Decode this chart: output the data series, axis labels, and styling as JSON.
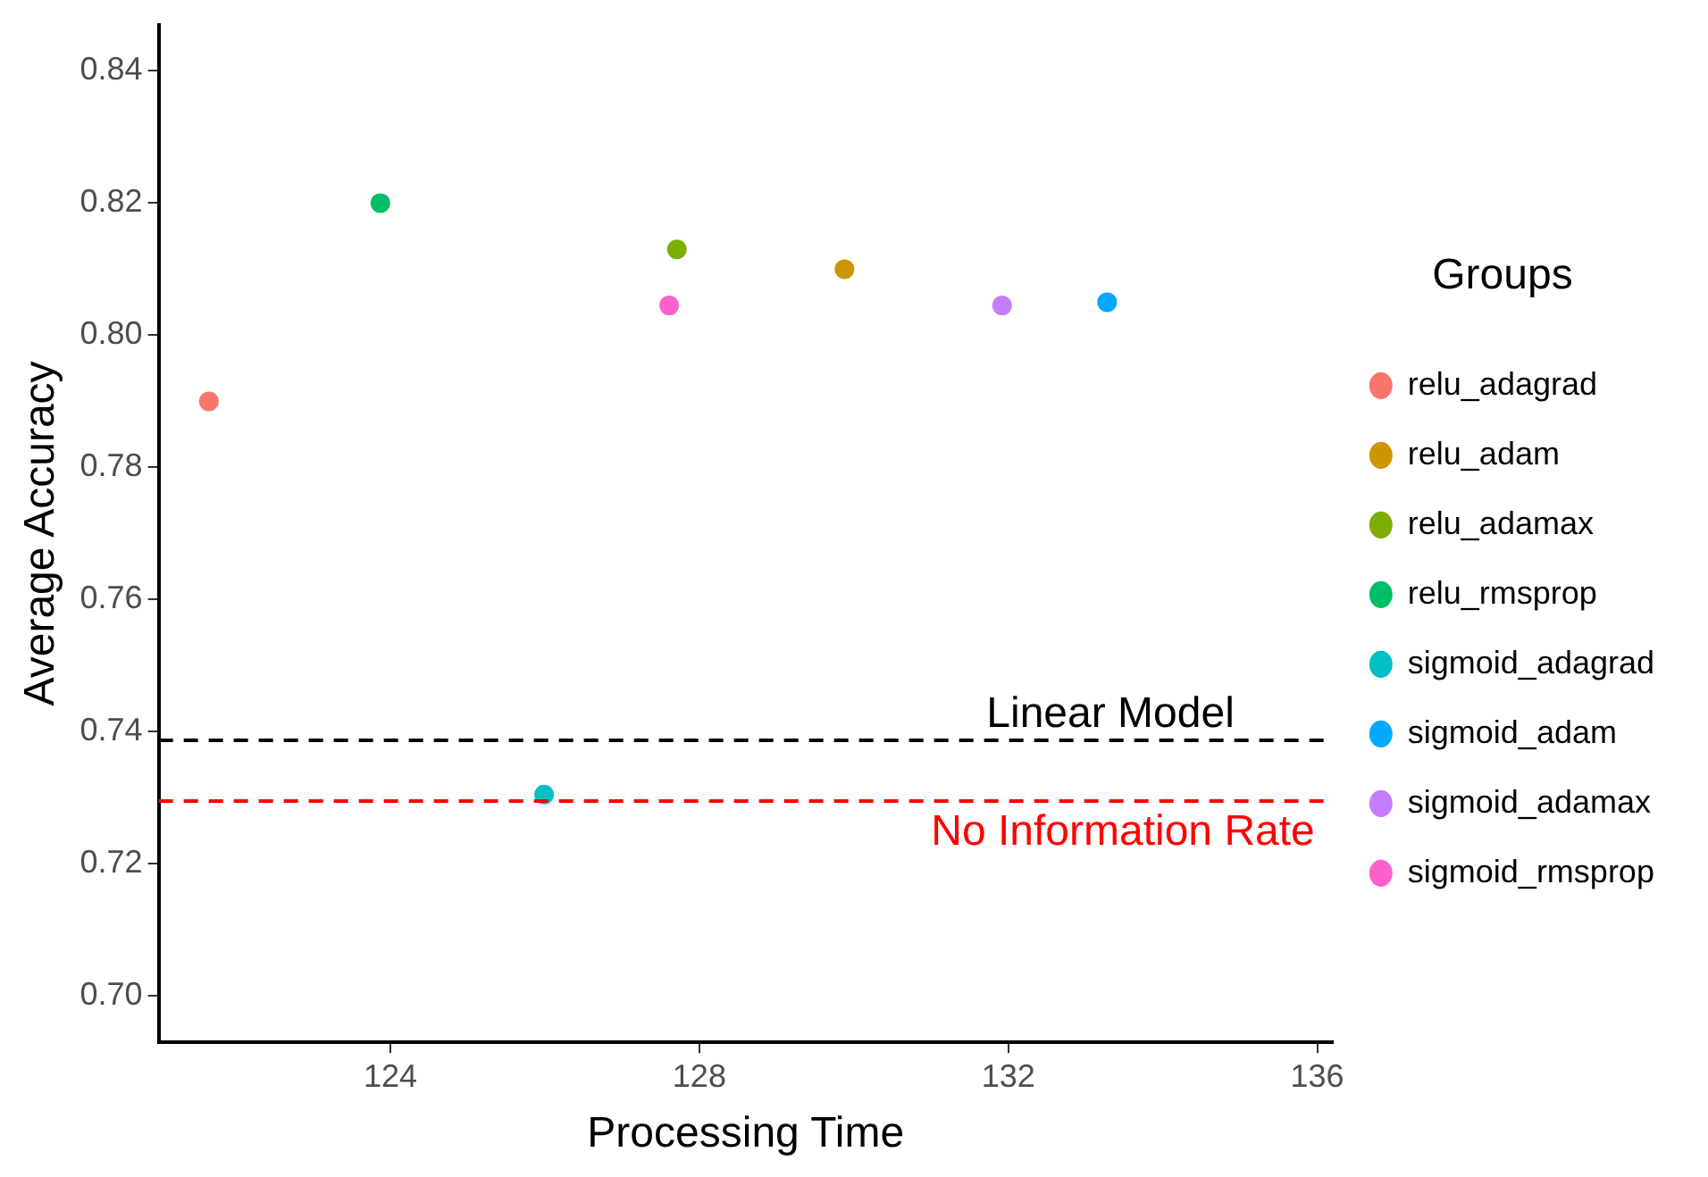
{
  "chart_data": {
    "type": "scatter",
    "xlabel": "Processing Time",
    "ylabel": "Average Accuracy",
    "legend_title": "Groups",
    "legend": "right",
    "grid": false,
    "marker": "circle",
    "xlim": [
      121,
      136.2
    ],
    "xticks": [
      124,
      128,
      132,
      136
    ],
    "ylim": [
      0.693,
      0.847
    ],
    "yticks": [
      {
        "value": 0.7,
        "label": "0.70"
      },
      0.72,
      0.74,
      0.76,
      0.78,
      {
        "value": 0.8,
        "label": "0.80"
      },
      0.82,
      0.84
    ],
    "series": [
      {
        "name": "relu_adagrad",
        "color": "#f8766d",
        "x": [
          121.65
        ],
        "values": [
          0.79
        ]
      },
      {
        "name": "relu_adam",
        "color": "#cd9600",
        "x": [
          129.88
        ],
        "values": [
          0.81
        ]
      },
      {
        "name": "relu_adamax",
        "color": "#7cae00",
        "x": [
          127.71
        ],
        "values": [
          0.813
        ]
      },
      {
        "name": "relu_rmsprop",
        "color": "#00be67",
        "x": [
          123.87
        ],
        "values": [
          0.82
        ]
      },
      {
        "name": "sigmoid_adagrad",
        "color": "#00bfc4",
        "x": [
          125.99
        ],
        "values": [
          0.7305
        ]
      },
      {
        "name": "sigmoid_adam",
        "color": "#00a9ff",
        "x": [
          133.28
        ],
        "values": [
          0.805
        ]
      },
      {
        "name": "sigmoid_adamax",
        "color": "#c77cff",
        "x": [
          131.92
        ],
        "values": [
          0.8045
        ]
      },
      {
        "name": "sigmoid_rmsprop",
        "color": "#ff61cc",
        "x": [
          127.61
        ],
        "values": [
          0.8045
        ]
      }
    ],
    "ref_lines": [
      {
        "axis": "y",
        "value": 0.7387,
        "label": "Linear Model",
        "color": "#000000",
        "line_style": "dashed"
      },
      {
        "axis": "y",
        "value": 0.7295,
        "label": "No Information Rate",
        "color": "#ff0000",
        "line_style": "dashed"
      }
    ]
  }
}
